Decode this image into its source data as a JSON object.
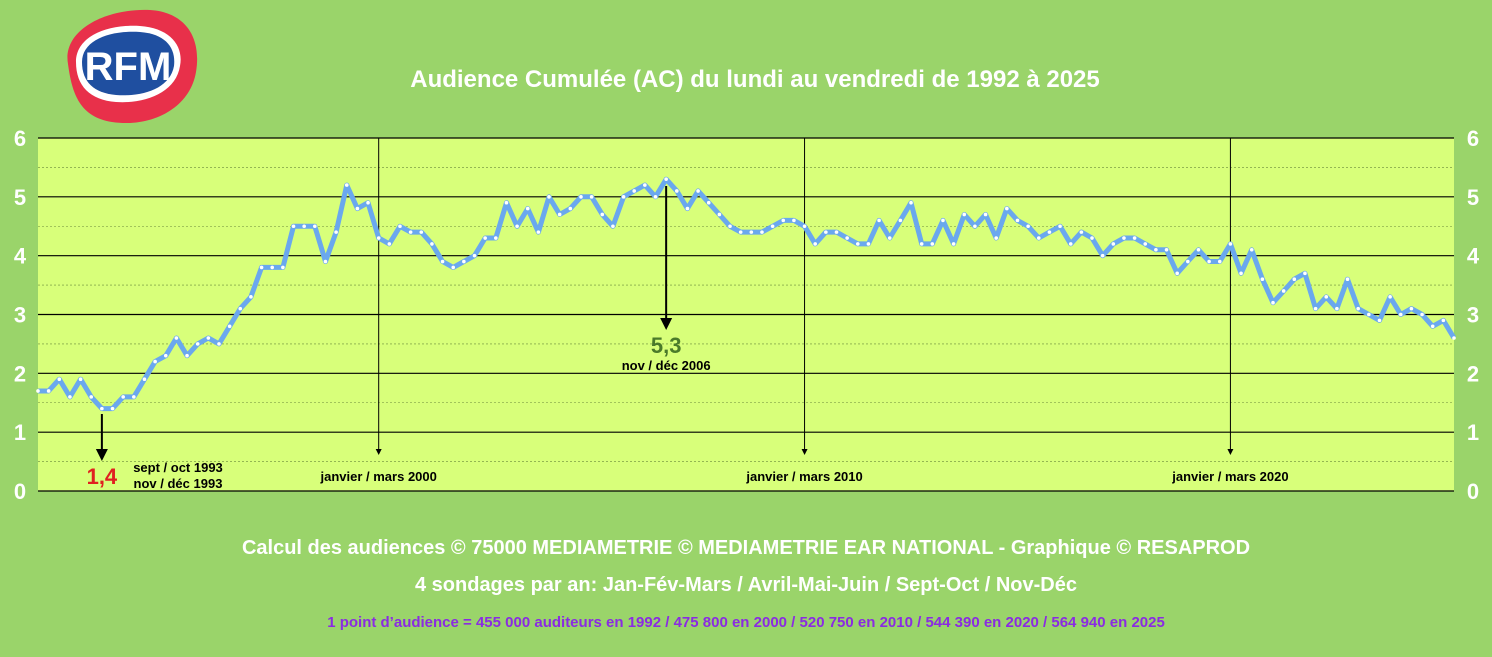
{
  "logo": {
    "text": "RFM",
    "colors": {
      "outer": "#e8304a",
      "inner": "#1f4fa0"
    }
  },
  "colors": {
    "background": "#9ad46a",
    "plot_area": "#d8ff7a",
    "line": "#6aa8ee",
    "min_label": "#e02020",
    "max_label": "#4a7a2a",
    "footnote": "#8a2be2"
  },
  "chart_data": {
    "type": "line",
    "title": "Audience Cumulée (AC) du lundi au vendredi de 1992 à 2025",
    "ylim": [
      0,
      6
    ],
    "y_ticks": [
      0,
      1,
      2,
      3,
      4,
      5,
      6
    ],
    "grid": true,
    "x_start": "1992",
    "x_end": "2025",
    "series": [
      {
        "values": [
          1.7,
          1.7,
          1.9,
          1.6,
          1.9,
          1.6,
          1.4,
          1.4,
          1.6,
          1.6,
          1.9,
          2.2,
          2.3,
          2.6,
          2.3,
          2.5,
          2.6,
          2.5,
          2.8,
          3.1,
          3.3,
          3.8,
          3.8,
          3.8,
          4.5,
          4.5,
          4.5,
          3.9,
          4.4,
          5.2,
          4.8,
          4.9,
          4.3,
          4.2,
          4.5,
          4.4,
          4.4,
          4.2,
          3.9,
          3.8,
          3.9,
          4.0,
          4.3,
          4.3,
          4.9,
          4.5,
          4.8,
          4.4,
          5.0,
          4.7,
          4.8,
          5.0,
          5.0,
          4.7,
          4.5,
          5.0,
          5.1,
          5.2,
          5.0,
          5.3,
          5.1,
          4.8,
          5.1,
          4.9,
          4.7,
          4.5,
          4.4,
          4.4,
          4.4,
          4.5,
          4.6,
          4.6,
          4.5,
          4.2,
          4.4,
          4.4,
          4.3,
          4.2,
          4.2,
          4.6,
          4.3,
          4.6,
          4.9,
          4.2,
          4.2,
          4.6,
          4.2,
          4.7,
          4.5,
          4.7,
          4.3,
          4.8,
          4.6,
          4.5,
          4.3,
          4.4,
          4.5,
          4.2,
          4.4,
          4.3,
          4.0,
          4.2,
          4.3,
          4.3,
          4.2,
          4.1,
          4.1,
          3.7,
          3.9,
          4.1,
          3.9,
          3.9,
          4.2,
          3.7,
          4.1,
          3.6,
          3.2,
          3.4,
          3.6,
          3.7,
          3.1,
          3.3,
          3.1,
          3.6,
          3.1,
          3.0,
          2.9,
          3.3,
          3.0,
          3.1,
          3.0,
          2.8,
          2.9,
          2.6
        ]
      }
    ],
    "markers": [
      {
        "label": "janvier / mars 2000",
        "index": 32
      },
      {
        "label": "janvier / mars 2010",
        "index": 72
      },
      {
        "label": "janvier / mars 2020",
        "index": 112
      }
    ],
    "annotations": {
      "min": {
        "value": "1,4",
        "index": 6,
        "lines": [
          "sept / oct 1993",
          "nov / déc 1993"
        ]
      },
      "max": {
        "value": "5,3",
        "index": 59,
        "lines": [
          "nov / déc 2006"
        ]
      }
    }
  },
  "footer": {
    "credits": "Calcul des audiences © 75000 MEDIAMETRIE © MEDIAMETRIE EAR NATIONAL - Graphique © RESAPROD",
    "surveys": "4 sondages par an: Jan-Fév-Mars / Avril-Mai-Juin / Sept-Oct / Nov-Déc",
    "points": "1 point d’audience = 455 000 auditeurs en 1992   /   475 800 en 2000   /   520 750 en 2010   /   544 390 en 2020   /   564 940 en 2025"
  }
}
